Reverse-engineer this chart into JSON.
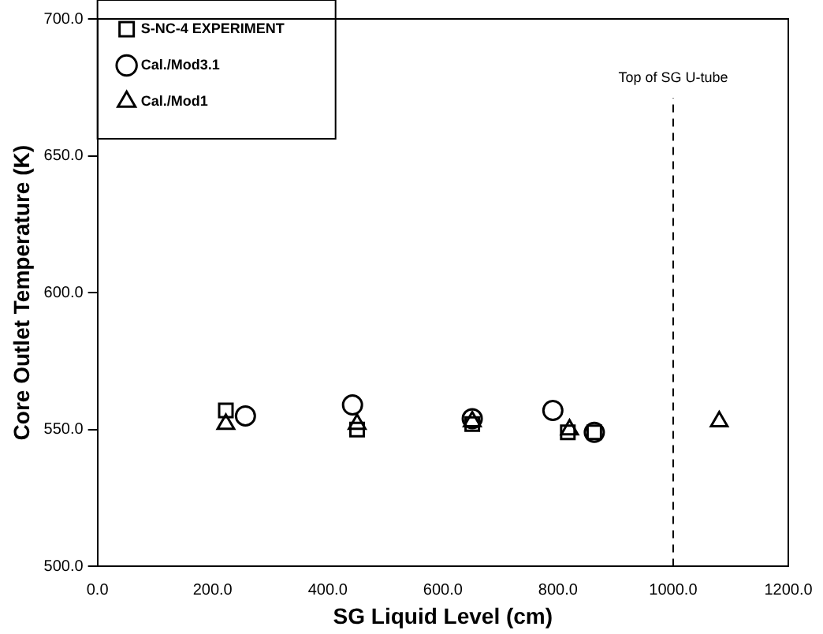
{
  "chart_data": {
    "type": "scatter",
    "xlabel": "SG Liquid Level (cm)",
    "ylabel": "Core Outlet Temperature (K)",
    "xlim": [
      0,
      1200
    ],
    "xticks": [
      {
        "value": 0,
        "label": "0.0"
      },
      {
        "value": 200,
        "label": "200.0"
      },
      {
        "value": 400,
        "label": "400.0"
      },
      {
        "value": 600,
        "label": "600.0"
      },
      {
        "value": 800,
        "label": "800.0"
      },
      {
        "value": 1000,
        "label": "1000.0"
      },
      {
        "value": 1200,
        "label": "1200.0"
      }
    ],
    "ylim": [
      500,
      700
    ],
    "yticks": [
      {
        "value": 500,
        "label": "500.0"
      },
      {
        "value": 550,
        "label": "550.0"
      },
      {
        "value": 600,
        "label": "600.0"
      },
      {
        "value": 650,
        "label": "650.0"
      },
      {
        "value": 700,
        "label": "700.0"
      }
    ],
    "grid": false,
    "legend": "top left",
    "series": [
      {
        "name": "S-NC-4 EXPERIMENT",
        "color": "#000000",
        "marker": "square",
        "x": [
          223,
          451,
          651,
          817,
          863
        ],
        "values": [
          557,
          550,
          552,
          549,
          549
        ]
      },
      {
        "name": "Cal./Mod3.1",
        "color": "#000000",
        "marker": "circle",
        "x": [
          257,
          443,
          651,
          791,
          863
        ],
        "values": [
          555,
          559,
          554,
          557,
          549
        ]
      },
      {
        "name": "Cal./Mod1",
        "color": "#000000",
        "marker": "triangle",
        "x": [
          223,
          451,
          651,
          820,
          1080
        ],
        "values": [
          552,
          552,
          553,
          550,
          553
        ]
      }
    ],
    "ref_lines": [
      {
        "axis": "x",
        "value": 1000,
        "label": "Top of SG U-tube",
        "color": "#000000",
        "line_style": "dashed"
      }
    ]
  }
}
